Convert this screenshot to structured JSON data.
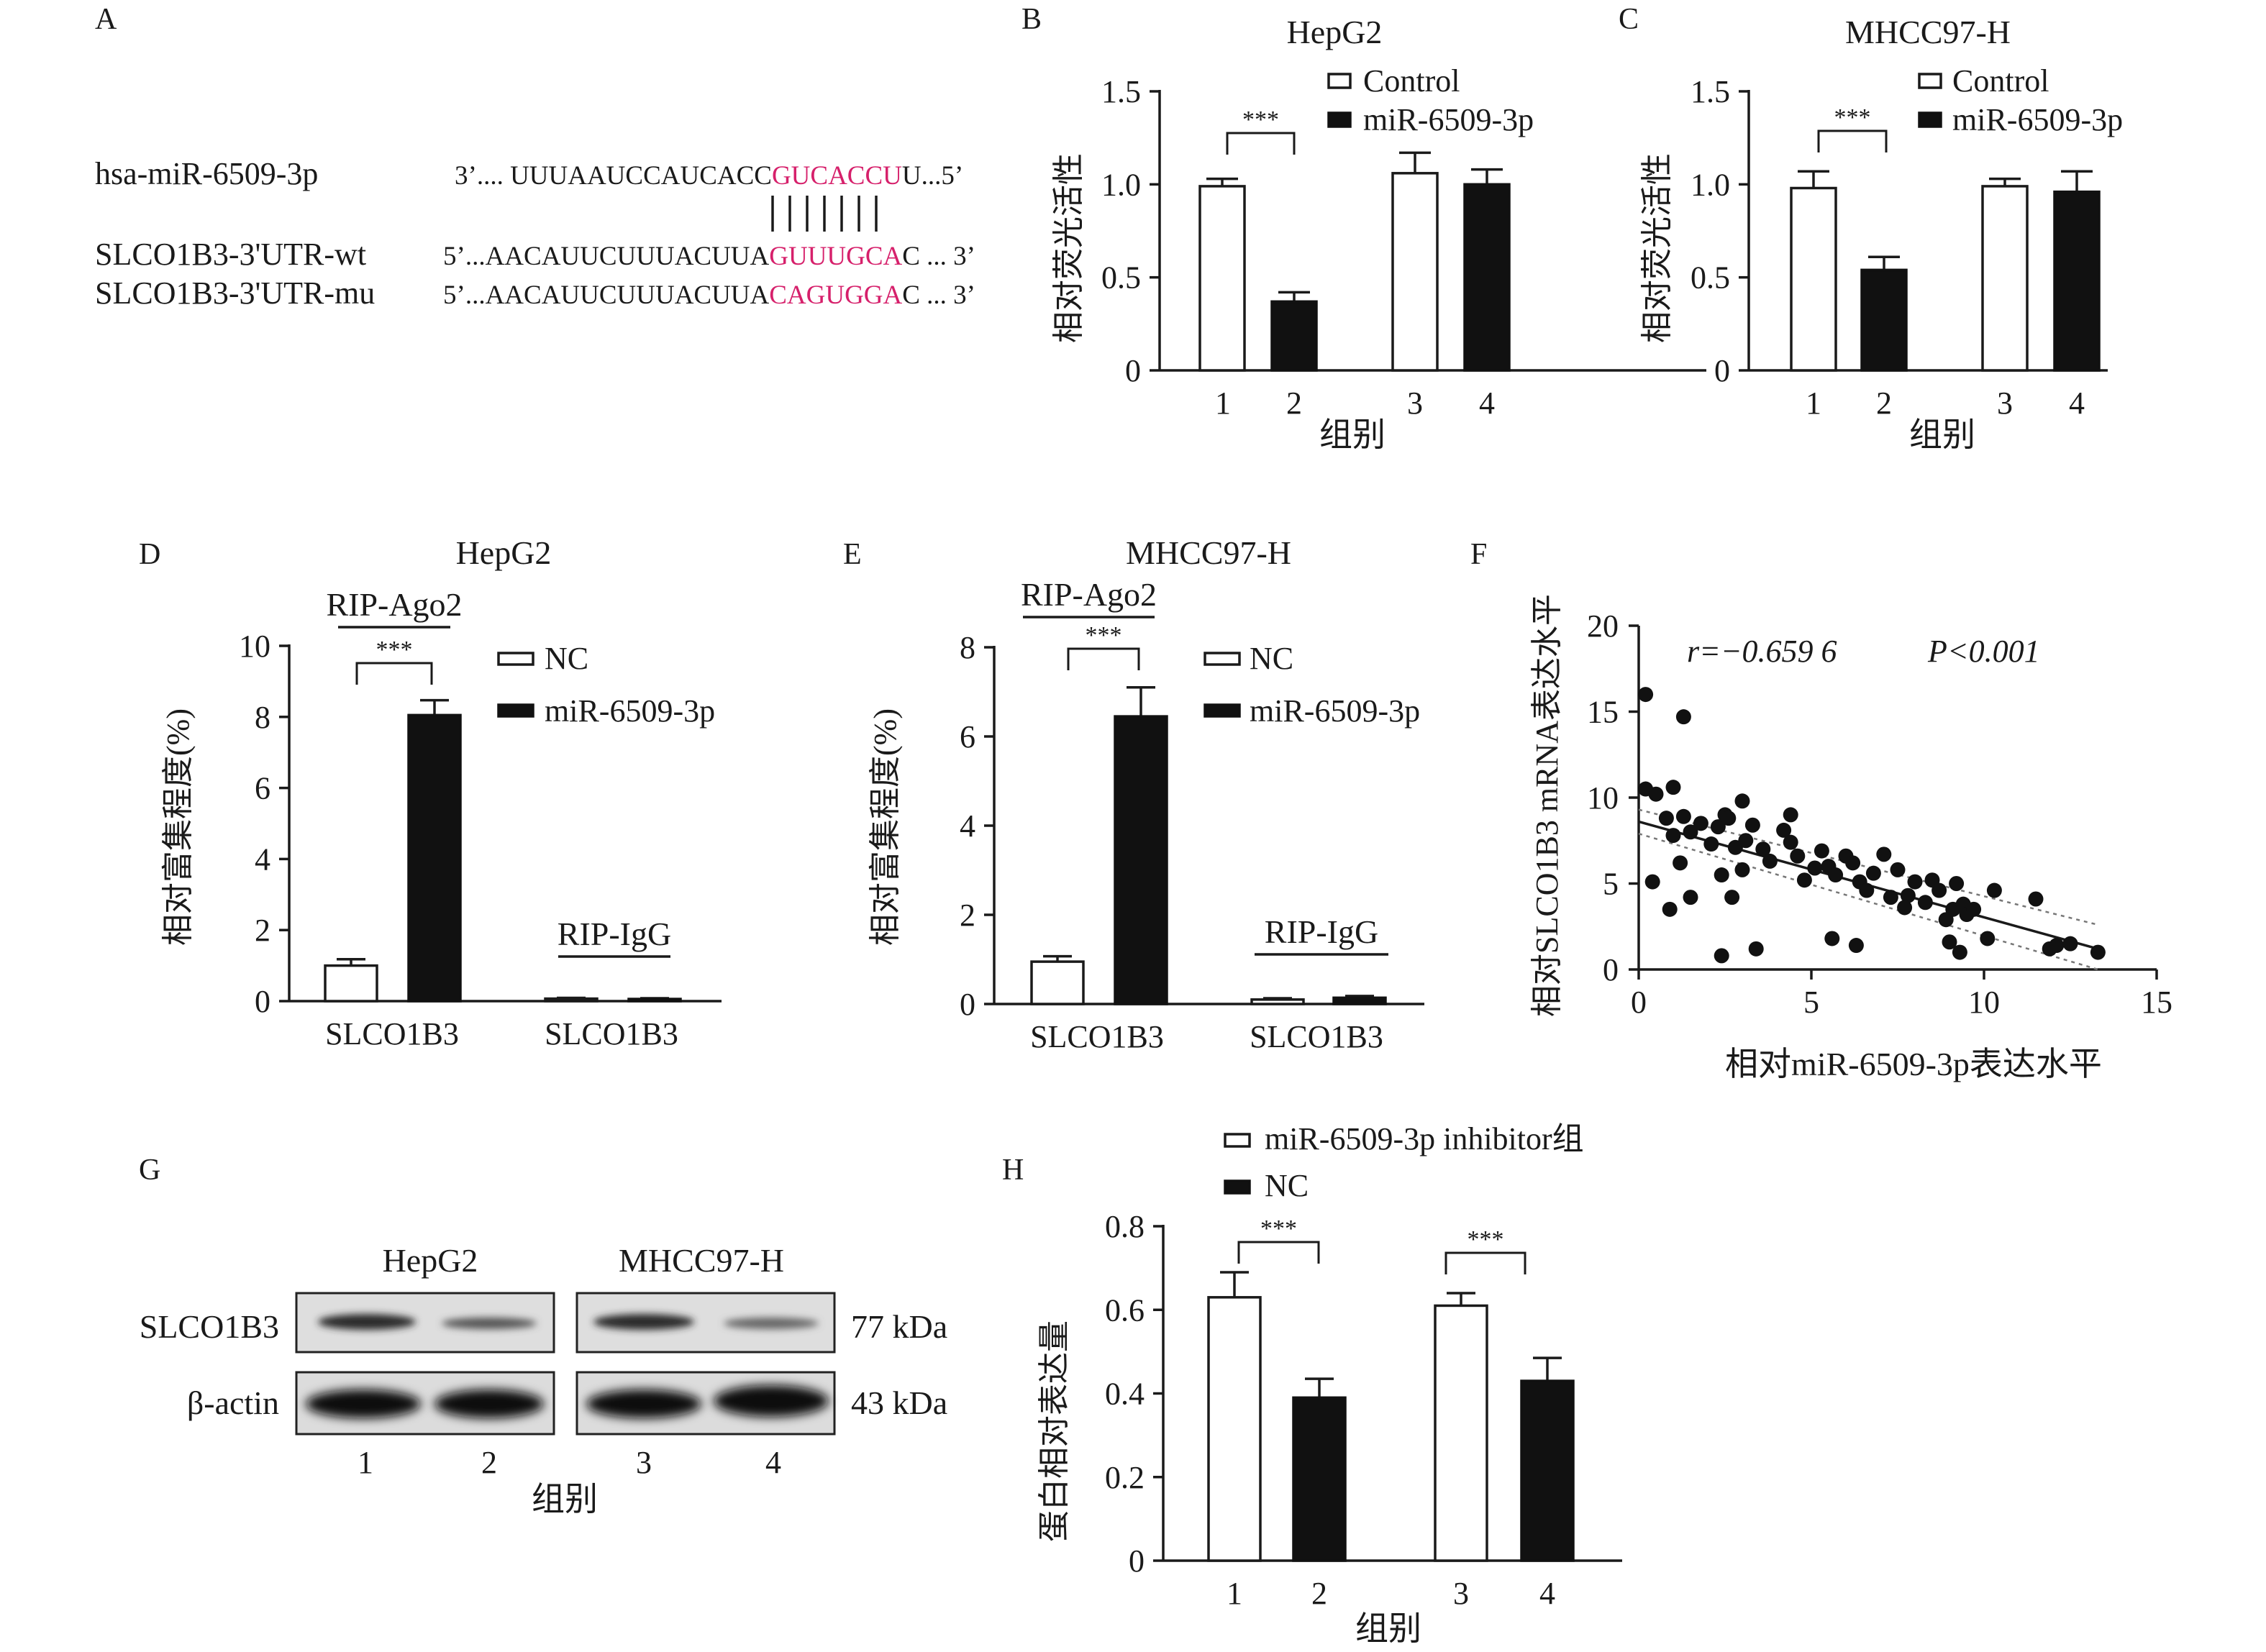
{
  "panel_letters": {
    "a": "A",
    "b": "B",
    "c": "C",
    "d": "D",
    "e": "E",
    "f": "F",
    "g": "G",
    "h": "H"
  },
  "sig": "***",
  "group_label": "组别",
  "seq": {
    "mir_name": "hsa-miR-6509-3p",
    "mir_p1": "3’.... UUUAAUCCAUCACC",
    "mir_p2": "GUCACCU",
    "mir_p3": "U...5’",
    "wt_name": "SLCO1B3-3'UTR-wt",
    "wt_p1": "5’...AACAUUCUUUACUUA",
    "wt_p2": "GUUUGCA",
    "wt_p3": "C ... 3’",
    "mu_name": "SLCO1B3-3'UTR-mu",
    "mu_p1": "5’...AACAUUCUUUACUUA",
    "mu_p2": "CAGUGGA",
    "mu_p3": "C ... 3’",
    "highlight_color": "#d6206b"
  },
  "blot": {
    "cell1": "HepG2",
    "cell2": "MHCC97-H",
    "row1": "SLCO1B3",
    "row2": "β-actin",
    "kda1": "77 kDa",
    "kda2": "43 kDa",
    "lanes": [
      "1",
      "2",
      "3",
      "4"
    ]
  },
  "chart_data": [
    {
      "id": "B",
      "type": "bar",
      "title": "HepG2",
      "xlabel": "组别",
      "ylabel": "相对荧光活性",
      "ylim": [
        0,
        1.5
      ],
      "yticks": [
        "0",
        "0.5",
        "1.0",
        "1.5"
      ],
      "categories": [
        "1",
        "2",
        "3",
        "4"
      ],
      "legend": [
        "Control",
        "miR-6509-3p"
      ],
      "series": [
        {
          "name": "Control",
          "values": [
            0.99,
            null,
            1.06,
            null
          ],
          "errors": [
            0.04,
            null,
            0.11,
            null
          ]
        },
        {
          "name": "miR-6509-3p",
          "values": [
            null,
            0.37,
            null,
            1.0
          ],
          "errors": [
            null,
            0.05,
            null,
            0.08
          ]
        }
      ]
    },
    {
      "id": "C",
      "type": "bar",
      "title": "MHCC97-H",
      "xlabel": "组别",
      "ylabel": "相对荧光活性",
      "ylim": [
        0,
        1.5
      ],
      "yticks": [
        "0",
        "0.5",
        "1.0",
        "1.5"
      ],
      "categories": [
        "1",
        "2",
        "3",
        "4"
      ],
      "legend": [
        "Control",
        "miR-6509-3p"
      ],
      "series": [
        {
          "name": "Control",
          "values": [
            0.98,
            null,
            0.99,
            null
          ],
          "errors": [
            0.09,
            null,
            0.04,
            null
          ]
        },
        {
          "name": "miR-6509-3p",
          "values": [
            null,
            0.54,
            null,
            0.96
          ],
          "errors": [
            null,
            0.07,
            null,
            0.11
          ]
        }
      ]
    },
    {
      "id": "D",
      "type": "bar",
      "title": "HepG2",
      "ylabel": "相对富集程度(%)",
      "ylim": [
        0,
        10
      ],
      "yticks": [
        "0",
        "2",
        "4",
        "6",
        "8",
        "10"
      ],
      "categories": [
        "SLCO1B3",
        "SLCO1B3"
      ],
      "group_titles": [
        "RIP-Ago2",
        "RIP-IgG"
      ],
      "legend": [
        "NC",
        "miR-6509-3p"
      ],
      "series": [
        {
          "name": "NC",
          "values": [
            1.0,
            0.07
          ],
          "errors": [
            0.18,
            0.02
          ]
        },
        {
          "name": "miR-6509-3p",
          "values": [
            8.05,
            0.06
          ],
          "errors": [
            0.42,
            0.02
          ]
        }
      ]
    },
    {
      "id": "E",
      "type": "bar",
      "title": "MHCC97-H",
      "ylabel": "相对富集程度(%)",
      "ylim": [
        0,
        8
      ],
      "yticks": [
        "0",
        "2",
        "4",
        "6",
        "8"
      ],
      "categories": [
        "SLCO1B3",
        "SLCO1B3"
      ],
      "group_titles": [
        "RIP-Ago2",
        "RIP-IgG"
      ],
      "legend": [
        "NC",
        "miR-6509-3p"
      ],
      "series": [
        {
          "name": "NC",
          "values": [
            0.95,
            0.1
          ],
          "errors": [
            0.12,
            0.03
          ]
        },
        {
          "name": "miR-6509-3p",
          "values": [
            6.45,
            0.14
          ],
          "errors": [
            0.65,
            0.04
          ]
        }
      ]
    },
    {
      "id": "F",
      "type": "scatter",
      "xlabel": "相对miR-6509-3p表达水平",
      "ylabel": "相对SLCO1B3 mRNA表达水平",
      "xlim": [
        0,
        15
      ],
      "ylim": [
        0,
        20
      ],
      "xticks": [
        "0",
        "5",
        "10",
        "15"
      ],
      "yticks": [
        "0",
        "5",
        "10",
        "15",
        "20"
      ],
      "stat_r": "r=−0.659 6",
      "stat_p": "P<0.001",
      "fit": [
        [
          0,
          8.6
        ],
        [
          13.3,
          1.2
        ]
      ],
      "ci_upper": [
        [
          0,
          9.3
        ],
        [
          13.3,
          2.6
        ]
      ],
      "ci_lower": [
        [
          0,
          7.9
        ],
        [
          13.3,
          0.0
        ]
      ],
      "points": [
        [
          0.2,
          16
        ],
        [
          0.2,
          10.5
        ],
        [
          0.5,
          10.2
        ],
        [
          1.3,
          14.7
        ],
        [
          1.0,
          10.6
        ],
        [
          0.8,
          8.8
        ],
        [
          1.3,
          8.9
        ],
        [
          1.5,
          8.0
        ],
        [
          1.0,
          7.8
        ],
        [
          0.4,
          5.1
        ],
        [
          0.9,
          3.5
        ],
        [
          1.2,
          6.2
        ],
        [
          1.5,
          4.2
        ],
        [
          1.8,
          8.5
        ],
        [
          2.1,
          7.3
        ],
        [
          2.3,
          8.3
        ],
        [
          2.5,
          9.0
        ],
        [
          2.6,
          8.8
        ],
        [
          2.8,
          7.1
        ],
        [
          3.0,
          9.8
        ],
        [
          3.1,
          7.5
        ],
        [
          3.3,
          8.4
        ],
        [
          3.6,
          7.0
        ],
        [
          3.8,
          6.3
        ],
        [
          2.4,
          5.5
        ],
        [
          2.7,
          4.2
        ],
        [
          3.0,
          5.8
        ],
        [
          2.4,
          0.8
        ],
        [
          3.4,
          1.2
        ],
        [
          4.2,
          8.1
        ],
        [
          4.4,
          7.4
        ],
        [
          4.6,
          6.6
        ],
        [
          4.4,
          9.0
        ],
        [
          4.8,
          5.2
        ],
        [
          5.1,
          5.9
        ],
        [
          5.3,
          6.9
        ],
        [
          5.5,
          6.0
        ],
        [
          5.7,
          5.5
        ],
        [
          5.6,
          1.8
        ],
        [
          6.0,
          6.6
        ],
        [
          6.2,
          6.2
        ],
        [
          6.4,
          5.1
        ],
        [
          6.6,
          4.6
        ],
        [
          6.3,
          1.4
        ],
        [
          7.1,
          6.7
        ],
        [
          6.8,
          5.6
        ],
        [
          7.3,
          4.2
        ],
        [
          7.5,
          5.8
        ],
        [
          7.8,
          4.3
        ],
        [
          7.7,
          3.6
        ],
        [
          8.0,
          5.1
        ],
        [
          8.3,
          3.9
        ],
        [
          8.5,
          5.2
        ],
        [
          8.7,
          4.6
        ],
        [
          8.9,
          2.9
        ],
        [
          9.0,
          1.6
        ],
        [
          9.2,
          5.0
        ],
        [
          9.1,
          3.5
        ],
        [
          9.4,
          3.8
        ],
        [
          9.5,
          3.2
        ],
        [
          9.7,
          3.5
        ],
        [
          9.3,
          1.0
        ],
        [
          10.3,
          4.6
        ],
        [
          10.1,
          1.8
        ],
        [
          11.5,
          4.1
        ],
        [
          11.9,
          1.2
        ],
        [
          12.1,
          1.4
        ],
        [
          12.5,
          1.5
        ],
        [
          13.3,
          1.0
        ]
      ]
    },
    {
      "id": "H",
      "type": "bar",
      "xlabel": "组别",
      "ylabel": "蛋白相对表达量",
      "ylim": [
        0,
        0.8
      ],
      "yticks": [
        "0",
        "0.2",
        "0.4",
        "0.6",
        "0.8"
      ],
      "categories": [
        "1",
        "2",
        "3",
        "4"
      ],
      "legend": [
        "miR-6509-3p inhibitor组",
        "NC"
      ],
      "series": [
        {
          "name": "miR-6509-3p inhibitor组",
          "values": [
            0.63,
            null,
            0.61,
            null
          ],
          "errors": [
            0.06,
            null,
            0.03,
            null
          ]
        },
        {
          "name": "NC",
          "values": [
            null,
            0.39,
            null,
            0.43
          ],
          "errors": [
            null,
            0.045,
            null,
            0.055
          ]
        }
      ]
    }
  ]
}
